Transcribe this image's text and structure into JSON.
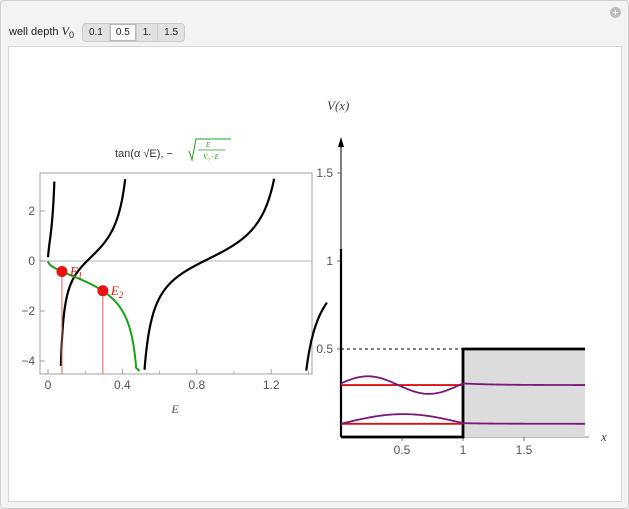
{
  "controls": {
    "label_prefix": "well depth ",
    "label_var": "V",
    "label_sub": "0",
    "options": [
      "0.1",
      "0.5",
      "1.",
      "1.5"
    ],
    "selected": "0.5"
  },
  "left_plot": {
    "title_text": "tan(α √E), −",
    "title_frac_num": "E",
    "title_frac_den": "V₀−E",
    "xlabel": "E",
    "xticks": [
      "0",
      "0.4",
      "0.8",
      "1.2"
    ],
    "yticks": [
      "2",
      "0",
      "−2",
      "−4"
    ],
    "marker_labels": [
      {
        "main": "E",
        "sub": "1"
      },
      {
        "main": "E",
        "sub": "2"
      }
    ]
  },
  "right_plot": {
    "ylabel": "V(x)",
    "xlabel": "x",
    "xticks": [
      "0.5",
      "1",
      "1.5"
    ],
    "yticks": [
      "0.5",
      "1",
      "1.5"
    ]
  },
  "chart_data": [
    {
      "type": "line",
      "title": "tan(α √E), −√(E/(V₀−E))",
      "xlabel": "E",
      "xlim": [
        0,
        1.5
      ],
      "ylim": [
        -4.3,
        3.3
      ],
      "series": [
        {
          "color": "#000000",
          "style": "branches of tan(α√E)",
          "zero_crossings_E": [
            0.052,
            0.21,
            0.47,
            0.83,
            1.3
          ]
        },
        {
          "color": "#17a317",
          "style": "−√(E/(V₀−E))",
          "x": [
            0,
            0.02,
            0.08,
            0.15,
            0.22,
            0.3,
            0.36,
            0.42,
            0.46,
            0.49
          ],
          "y": [
            0,
            -0.2,
            -0.45,
            -0.67,
            -0.89,
            -1.22,
            -1.64,
            -2.45,
            -3.79,
            -7
          ]
        }
      ],
      "points": [
        {
          "label": "E1",
          "x": 0.075,
          "y": -0.42
        },
        {
          "label": "E2",
          "x": 0.295,
          "y": -1.19
        }
      ]
    },
    {
      "type": "line",
      "xlabel": "x",
      "ylabel": "V(x)",
      "xlim": [
        0,
        2
      ],
      "ylim": [
        0,
        1.7
      ],
      "potential": {
        "V0": 0.5,
        "well_width": 1
      },
      "energy_levels": [
        0.075,
        0.295
      ],
      "wavefunction_color": "#7a167a",
      "level_color": "#e01010"
    }
  ]
}
